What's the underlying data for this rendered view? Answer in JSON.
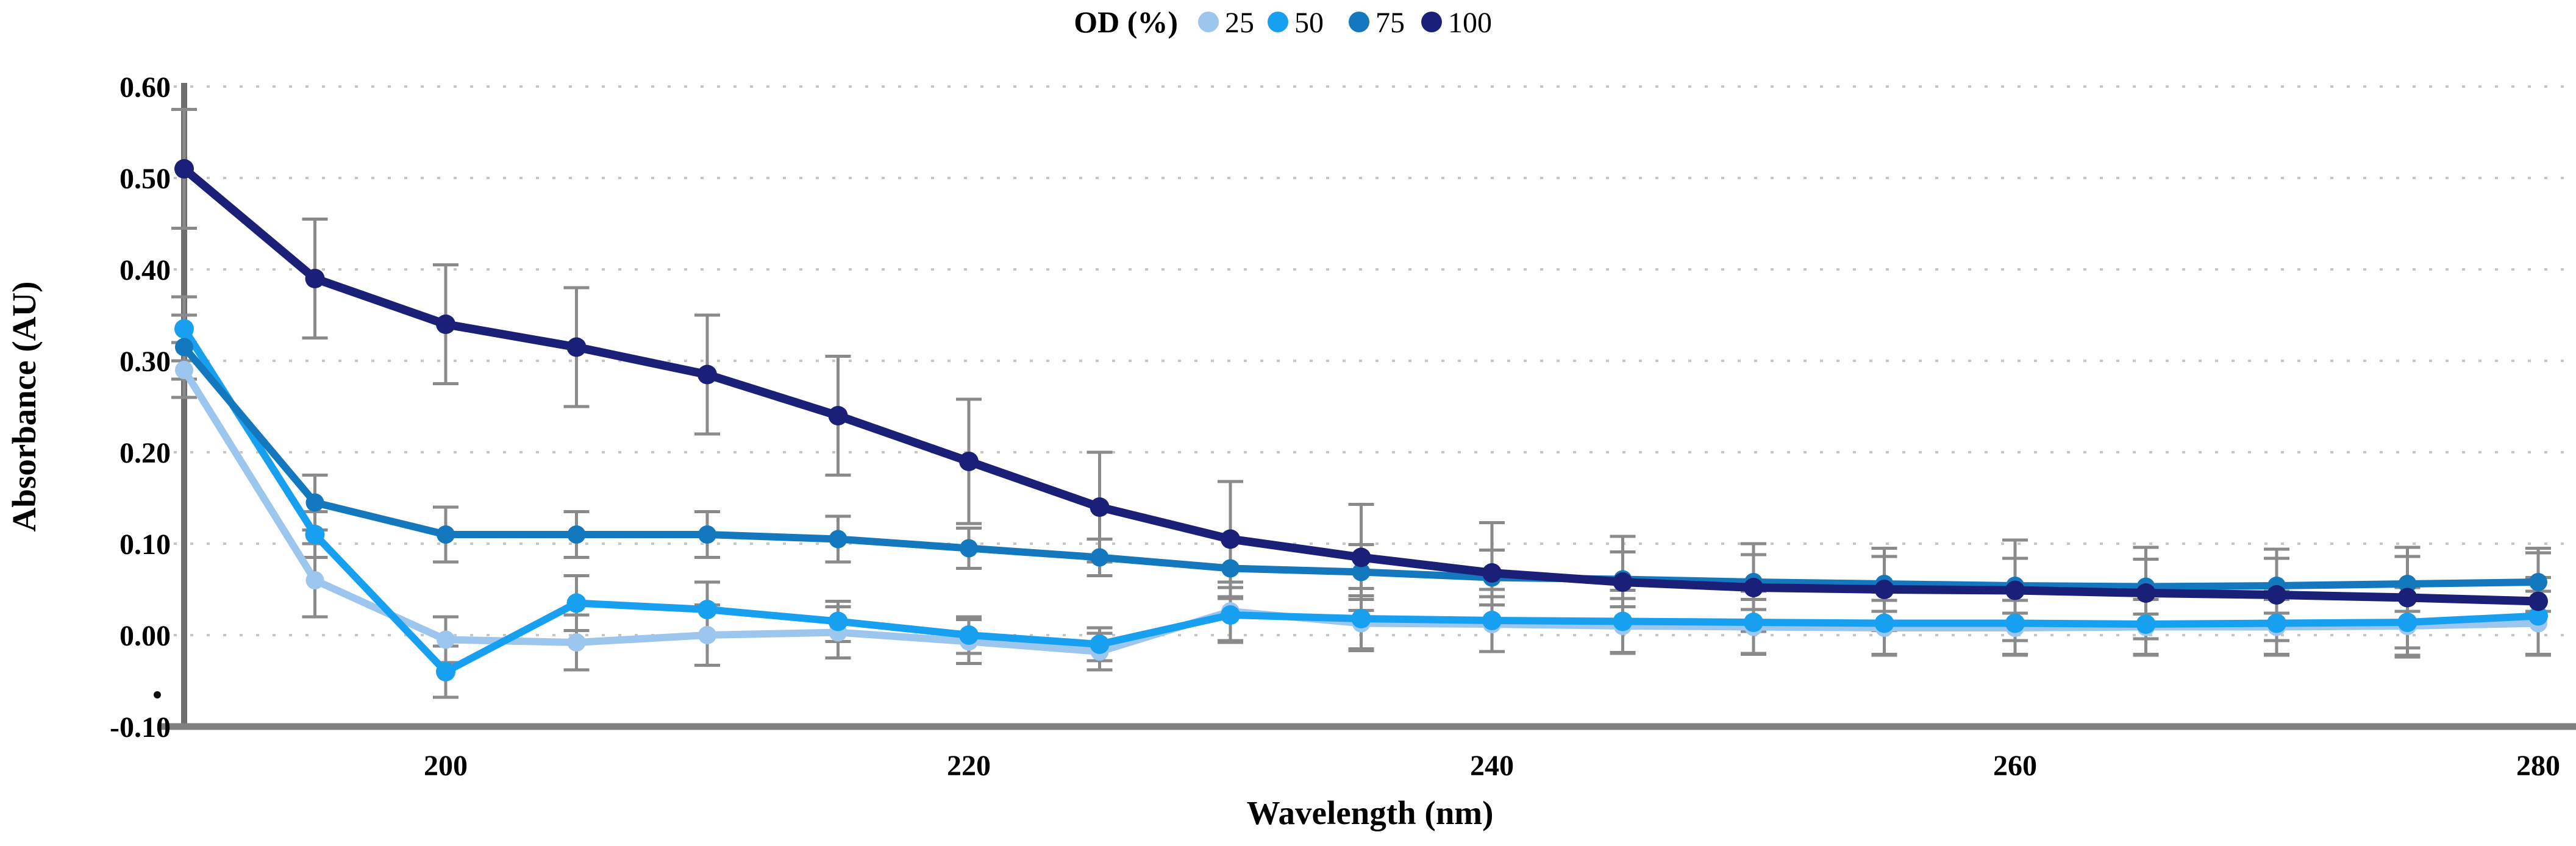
{
  "legend": {
    "title": "OD (%)",
    "items": [
      {
        "label": "25",
        "color": "#9CC6EE"
      },
      {
        "label": "50",
        "color": "#18A0F0"
      },
      {
        "label": "75",
        "color": "#1478BE"
      },
      {
        "label": "100",
        "color": "#1A2078"
      }
    ]
  },
  "axes": {
    "y": {
      "title": "Absorbance (AU)",
      "tick_labels": [
        "0.60",
        "0.50",
        "0.40",
        "0.30",
        "0.20",
        "0.10",
        "0.00",
        "-0.10"
      ],
      "tick_values": [
        0.6,
        0.5,
        0.4,
        0.3,
        0.2,
        0.1,
        0.0,
        -0.1
      ]
    },
    "x": {
      "title": "Wavelength (nm)",
      "tick_labels": [
        "200",
        "220",
        "240",
        "260",
        "280"
      ],
      "tick_values": [
        200,
        220,
        240,
        260,
        280
      ]
    }
  },
  "chart_data": {
    "type": "line",
    "title": "",
    "xlabel": "Wavelength (nm)",
    "ylabel": "Absorbance (AU)",
    "xlim": [
      190,
      280
    ],
    "ylim": [
      -0.1,
      0.6
    ],
    "grid": "horizontal-dotted",
    "legend_position": "top-center",
    "error_bar_color": "#8a8a8a",
    "x": [
      190,
      195,
      200,
      205,
      210,
      215,
      220,
      225,
      230,
      235,
      240,
      245,
      250,
      255,
      260,
      265,
      270,
      275,
      280
    ],
    "series": [
      {
        "name": "25",
        "color": "#9CC6EE",
        "values": [
          0.29,
          0.06,
          -0.005,
          -0.008,
          0.0,
          0.003,
          -0.007,
          -0.018,
          0.026,
          0.013,
          0.012,
          0.01,
          0.009,
          0.008,
          0.008,
          0.009,
          0.009,
          0.01,
          0.013
        ],
        "errors": [
          0.03,
          0.04,
          0.025,
          0.03,
          0.033,
          0.028,
          0.024,
          0.02,
          0.032,
          0.03,
          0.03,
          0.03,
          0.03,
          0.03,
          0.03,
          0.03,
          0.03,
          0.032,
          0.035
        ]
      },
      {
        "name": "50",
        "color": "#18A0F0",
        "values": [
          0.335,
          0.11,
          -0.04,
          0.035,
          0.028,
          0.015,
          0.0,
          -0.01,
          0.022,
          0.018,
          0.016,
          0.015,
          0.014,
          0.013,
          0.013,
          0.012,
          0.013,
          0.014,
          0.021
        ],
        "errors": [
          0.035,
          0.025,
          0.028,
          0.03,
          0.03,
          0.022,
          0.02,
          0.018,
          0.03,
          0.033,
          0.034,
          0.034,
          0.034,
          0.034,
          0.034,
          0.034,
          0.035,
          0.038,
          0.042
        ]
      },
      {
        "name": "75",
        "color": "#1478BE",
        "values": [
          0.315,
          0.145,
          0.11,
          0.11,
          0.11,
          0.105,
          0.095,
          0.085,
          0.073,
          0.069,
          0.063,
          0.061,
          0.058,
          0.056,
          0.054,
          0.053,
          0.054,
          0.056,
          0.058
        ],
        "errors": [
          0.035,
          0.03,
          0.03,
          0.025,
          0.025,
          0.025,
          0.022,
          0.02,
          0.033,
          0.03,
          0.03,
          0.03,
          0.03,
          0.03,
          0.03,
          0.03,
          0.03,
          0.03,
          0.032
        ]
      },
      {
        "name": "100",
        "color": "#1A2078",
        "values": [
          0.51,
          0.39,
          0.34,
          0.315,
          0.285,
          0.24,
          0.19,
          0.14,
          0.105,
          0.085,
          0.068,
          0.058,
          0.052,
          0.05,
          0.049,
          0.046,
          0.044,
          0.041,
          0.037
        ],
        "errors": [
          0.065,
          0.065,
          0.065,
          0.065,
          0.065,
          0.065,
          0.068,
          0.06,
          0.063,
          0.058,
          0.055,
          0.05,
          0.048,
          0.045,
          0.055,
          0.05,
          0.05,
          0.055,
          0.058
        ]
      }
    ]
  },
  "annotations": {
    "stray_mark": "."
  }
}
